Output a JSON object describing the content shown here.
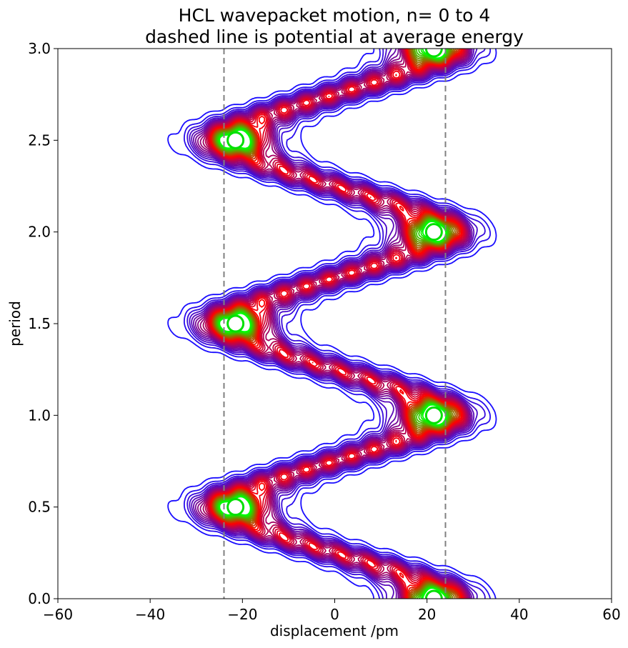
{
  "chart_data": {
    "type": "contour",
    "title_line1": "HCL wavepacket motion, n= 0 to 4",
    "title_line2": "dashed line is potential at average energy",
    "xlabel": "displacement /pm",
    "ylabel": "period",
    "xlim": [
      -60,
      60
    ],
    "ylim": [
      0.0,
      3.0
    ],
    "xticks": [
      -60,
      -40,
      -20,
      0,
      20,
      40,
      60
    ],
    "xtick_labels": [
      "−60",
      "−40",
      "−20",
      "0",
      "20",
      "40",
      "60"
    ],
    "yticks": [
      0.0,
      0.5,
      1.0,
      1.5,
      2.0,
      2.5,
      3.0
    ],
    "ytick_labels": [
      "0.0",
      "0.5",
      "1.0",
      "1.5",
      "2.0",
      "2.5",
      "3.0"
    ],
    "dashed_lines_x": [
      -24,
      24
    ],
    "wavepacket": {
      "amplitude_pm": 21.5,
      "peak_width_pm": 5.5,
      "peaks": [
        {
          "x": 21.5,
          "y": 0.0
        },
        {
          "x": -21.5,
          "y": 0.5
        },
        {
          "x": 21.5,
          "y": 1.0
        },
        {
          "x": -21.5,
          "y": 1.5
        },
        {
          "x": 21.5,
          "y": 2.0
        },
        {
          "x": -21.5,
          "y": 2.5
        },
        {
          "x": 21.5,
          "y": 3.0
        }
      ]
    },
    "colormap": [
      "#1a0dff",
      "#ff0000",
      "#00ff00"
    ],
    "grid": false,
    "legend": "none"
  }
}
